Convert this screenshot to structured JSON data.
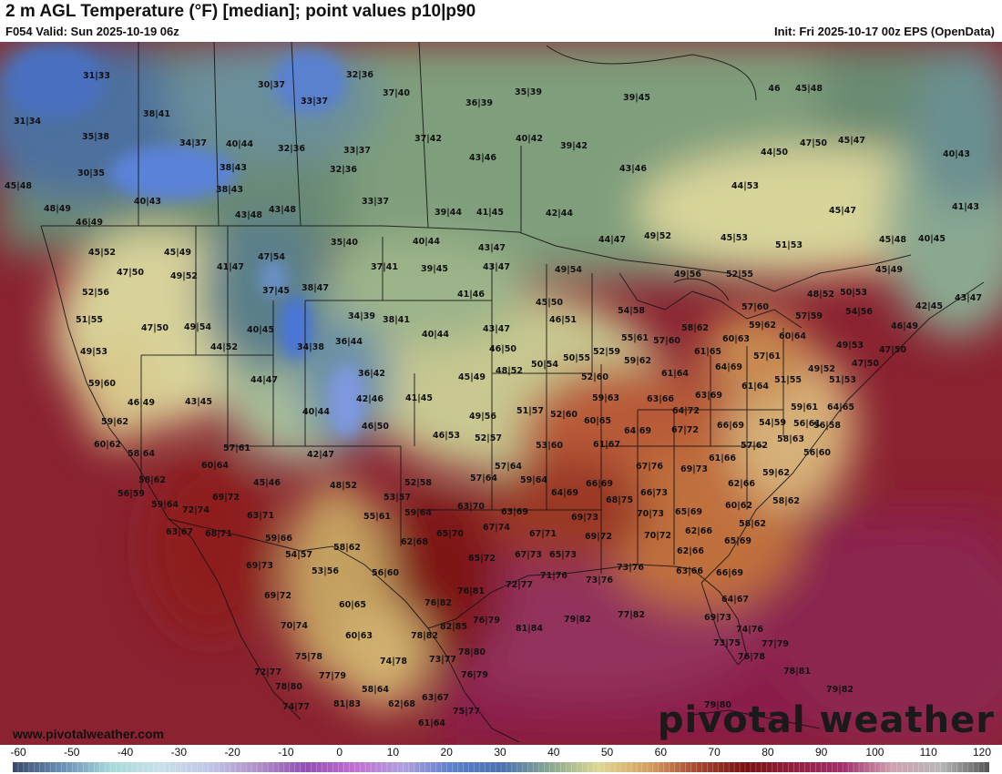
{
  "header": {
    "title": "2 m AGL Temperature (°F) [median]; point values p10|p90",
    "valid": "F054 Valid: Sun 2025-10-19 06z",
    "init": "Init: Fri 2025-10-17 00z EPS (OpenData)"
  },
  "footer": {
    "credit": "www.pivotalweather.com",
    "brand": "pivotal weather"
  },
  "legend": {
    "ticks": [
      "-60",
      "-50",
      "-40",
      "-30",
      "-20",
      "-10",
      "0",
      "10",
      "20",
      "30",
      "40",
      "50",
      "60",
      "70",
      "80",
      "90",
      "100",
      "110",
      "120"
    ],
    "min": -60,
    "max": 120,
    "stops": [
      "#3a4a6a",
      "#6a8fb5",
      "#a8d8d8",
      "#c8e0e8",
      "#c2c8e8",
      "#b090c8",
      "#9050b0",
      "#c070d0",
      "#b0a0e0",
      "#5a80d0",
      "#4a70b0",
      "#8aa890",
      "#dcd896",
      "#d8a060",
      "#a84830",
      "#7a1010",
      "#902040",
      "#a0306a",
      "#d0a0b0",
      "#b8b8b8",
      "#555555"
    ]
  },
  "points": [
    [
      "31|33",
      106,
      82
    ],
    [
      "31|34",
      30,
      132
    ],
    [
      "38|41",
      172,
      124
    ],
    [
      "35|38",
      105,
      149
    ],
    [
      "30|35",
      100,
      189
    ],
    [
      "45|48",
      20,
      203
    ],
    [
      "40|43",
      162,
      220
    ],
    [
      "48|49",
      63,
      228
    ],
    [
      "34|37",
      212,
      156
    ],
    [
      "40|44",
      263,
      157
    ],
    [
      "38|43",
      256,
      183
    ],
    [
      "38|43",
      252,
      207
    ],
    [
      "43|48",
      273,
      235
    ],
    [
      "30|37",
      298,
      92
    ],
    [
      "33|37",
      345,
      110
    ],
    [
      "32|36",
      395,
      81
    ],
    [
      "37|40",
      435,
      101
    ],
    [
      "36|39",
      526,
      112
    ],
    [
      "35|39",
      580,
      100
    ],
    [
      "39|45",
      699,
      106
    ],
    [
      "32|36",
      320,
      162
    ],
    [
      "33|37",
      392,
      164
    ],
    [
      "32|36",
      377,
      185
    ],
    [
      "37|42",
      470,
      151
    ],
    [
      "40|42",
      581,
      151
    ],
    [
      "39|42",
      630,
      159
    ],
    [
      "43|46",
      530,
      172
    ],
    [
      "33|37",
      412,
      220
    ],
    [
      "39|44",
      492,
      232
    ],
    [
      "41|45",
      538,
      232
    ],
    [
      "42|44",
      614,
      233
    ],
    [
      "43|46",
      695,
      184
    ],
    [
      "44|53",
      818,
      203
    ],
    [
      "44|50",
      850,
      166
    ],
    [
      "47|50",
      893,
      156
    ],
    [
      "45|47",
      935,
      153
    ],
    [
      "40|43",
      1050,
      168
    ],
    [
      "45|48",
      888,
      96
    ],
    [
      "46",
      850,
      96
    ],
    [
      "43|48",
      310,
      229
    ],
    [
      "46|49",
      98,
      243
    ],
    [
      "45|52",
      112,
      276
    ],
    [
      "45|49",
      195,
      276
    ],
    [
      "47|54",
      298,
      281
    ],
    [
      "41|47",
      253,
      292
    ],
    [
      "35|40",
      378,
      265
    ],
    [
      "40|44",
      468,
      264
    ],
    [
      "37|41",
      422,
      292
    ],
    [
      "39|45",
      477,
      294
    ],
    [
      "43|47",
      540,
      271
    ],
    [
      "43|47",
      545,
      292
    ],
    [
      "44|47",
      672,
      262
    ],
    [
      "49|52",
      722,
      258
    ],
    [
      "45|53",
      806,
      260
    ],
    [
      "51|53",
      866,
      268
    ],
    [
      "45|47",
      925,
      230
    ],
    [
      "41|43",
      1060,
      226
    ],
    [
      "45|48",
      980,
      262
    ],
    [
      "40|45",
      1023,
      261
    ],
    [
      "47|50",
      143,
      298
    ],
    [
      "49|52",
      202,
      302
    ],
    [
      "52|56",
      105,
      320
    ],
    [
      "37|45",
      303,
      318
    ],
    [
      "38|47",
      346,
      315
    ],
    [
      "41|46",
      517,
      322
    ],
    [
      "49|54",
      624,
      295
    ],
    [
      "49|56",
      755,
      300
    ],
    [
      "52|55",
      812,
      300
    ],
    [
      "45|49",
      976,
      295
    ],
    [
      "48|52",
      901,
      322
    ],
    [
      "50|53",
      937,
      320
    ],
    [
      "51|55",
      98,
      350
    ],
    [
      "47|50",
      170,
      359
    ],
    [
      "49|54",
      217,
      358
    ],
    [
      "40|45",
      286,
      361
    ],
    [
      "34|39",
      397,
      346
    ],
    [
      "38|41",
      435,
      350
    ],
    [
      "45|50",
      603,
      331
    ],
    [
      "46|51",
      618,
      350
    ],
    [
      "54|58",
      693,
      340
    ],
    [
      "57|60",
      829,
      336
    ],
    [
      "42|45",
      1020,
      335
    ],
    [
      "43|47",
      1063,
      326
    ],
    [
      "54|56",
      943,
      341
    ],
    [
      "46|49",
      993,
      357
    ],
    [
      "49|53",
      103,
      385
    ],
    [
      "44|52",
      246,
      380
    ],
    [
      "34|38",
      341,
      380
    ],
    [
      "36|44",
      383,
      374
    ],
    [
      "40|44",
      478,
      366
    ],
    [
      "43|47",
      545,
      360
    ],
    [
      "46|50",
      552,
      382
    ],
    [
      "55|61",
      697,
      370
    ],
    [
      "57|60",
      732,
      373
    ],
    [
      "58|62",
      763,
      359
    ],
    [
      "60|63",
      808,
      371
    ],
    [
      "59|62",
      837,
      356
    ],
    [
      "57|59",
      888,
      346
    ],
    [
      "60|64",
      870,
      368
    ],
    [
      "61|65",
      777,
      385
    ],
    [
      "57|61",
      842,
      390
    ],
    [
      "49|53",
      933,
      378
    ],
    [
      "47|50",
      980,
      383
    ],
    [
      "50|54",
      598,
      399
    ],
    [
      "50|55",
      633,
      392
    ],
    [
      "52|59",
      666,
      385
    ],
    [
      "59|62",
      700,
      395
    ],
    [
      "64|69",
      800,
      402
    ],
    [
      "51|55",
      865,
      416
    ],
    [
      "49|52",
      902,
      404
    ],
    [
      "47|50",
      950,
      398
    ],
    [
      "51|53",
      925,
      416
    ],
    [
      "59|60",
      112,
      420
    ],
    [
      "44|47",
      290,
      416
    ],
    [
      "36|42",
      408,
      409
    ],
    [
      "45|49",
      518,
      413
    ],
    [
      "48|52",
      559,
      406
    ],
    [
      "52|60",
      653,
      413
    ],
    [
      "61|64",
      741,
      409
    ],
    [
      "61|64",
      829,
      423
    ],
    [
      "46|49",
      155,
      441
    ],
    [
      "43|45",
      218,
      440
    ],
    [
      "42|46",
      406,
      437
    ],
    [
      "41|45",
      460,
      436
    ],
    [
      "40|44",
      347,
      451
    ],
    [
      "59|63",
      665,
      436
    ],
    [
      "63|66",
      725,
      437
    ],
    [
      "63|69",
      778,
      433
    ],
    [
      "59|61",
      883,
      446
    ],
    [
      "64|65",
      923,
      446
    ],
    [
      "59|62",
      126,
      462
    ],
    [
      "49|56",
      530,
      456
    ],
    [
      "51|57",
      582,
      450
    ],
    [
      "52|60",
      619,
      454
    ],
    [
      "60|65",
      656,
      461
    ],
    [
      "64|72",
      753,
      450
    ],
    [
      "56|61",
      886,
      464
    ],
    [
      "56|58",
      908,
      466
    ],
    [
      "60|62",
      118,
      487
    ],
    [
      "46|50",
      412,
      467
    ],
    [
      "46|53",
      490,
      477
    ],
    [
      "52|57",
      536,
      480
    ],
    [
      "64|69",
      700,
      472
    ],
    [
      "67|72",
      752,
      471
    ],
    [
      "66|69",
      802,
      466
    ],
    [
      "54|59",
      848,
      463
    ],
    [
      "58|64",
      155,
      497
    ],
    [
      "57|61",
      260,
      491
    ],
    [
      "42|47",
      352,
      498
    ],
    [
      "53|60",
      603,
      488
    ],
    [
      "61|67",
      666,
      487
    ],
    [
      "57|62",
      828,
      488
    ],
    [
      "58|63",
      868,
      481
    ],
    [
      "56|60",
      897,
      496
    ],
    [
      "60|64",
      236,
      510
    ],
    [
      "57|64",
      558,
      511
    ],
    [
      "67|76",
      713,
      511
    ],
    [
      "69|73",
      762,
      514
    ],
    [
      "61|66",
      793,
      502
    ],
    [
      "59|62",
      852,
      518
    ],
    [
      "58|62",
      167,
      526
    ],
    [
      "69|72",
      248,
      545
    ],
    [
      "45|46",
      293,
      529
    ],
    [
      "48|52",
      377,
      532
    ],
    [
      "52|58",
      459,
      529
    ],
    [
      "57|64",
      531,
      524
    ],
    [
      "59|64",
      586,
      526
    ],
    [
      "66|69",
      658,
      530
    ],
    [
      "62|66",
      814,
      530
    ],
    [
      "56|59",
      144,
      541
    ],
    [
      "59|64",
      181,
      553
    ],
    [
      "72|74",
      215,
      559
    ],
    [
      "53|57",
      436,
      545
    ],
    [
      "64|69",
      620,
      540
    ],
    [
      "68|75",
      680,
      548
    ],
    [
      "66|73",
      718,
      540
    ],
    [
      "58|62",
      863,
      549
    ],
    [
      "60|62",
      811,
      554
    ],
    [
      "63|67",
      197,
      583
    ],
    [
      "68|71",
      240,
      585
    ],
    [
      "63|71",
      286,
      565
    ],
    [
      "55|61",
      414,
      566
    ],
    [
      "59|64",
      459,
      562
    ],
    [
      "63|70",
      517,
      555
    ],
    [
      "63|69",
      565,
      561
    ],
    [
      "69|73",
      642,
      567
    ],
    [
      "70|73",
      714,
      563
    ],
    [
      "65|69",
      756,
      561
    ],
    [
      "58|62",
      826,
      574
    ],
    [
      "59|66",
      306,
      590
    ],
    [
      "58|62",
      381,
      600
    ],
    [
      "62|68",
      455,
      594
    ],
    [
      "65|70",
      494,
      585
    ],
    [
      "67|74",
      545,
      578
    ],
    [
      "67|71",
      596,
      585
    ],
    [
      "69|72",
      657,
      588
    ],
    [
      "70|72",
      722,
      587
    ],
    [
      "62|66",
      767,
      582
    ],
    [
      "65|69",
      810,
      593
    ],
    [
      "54|57",
      328,
      608
    ],
    [
      "65|72",
      529,
      612
    ],
    [
      "67|73",
      580,
      608
    ],
    [
      "65|73",
      618,
      608
    ],
    [
      "62|66",
      758,
      604
    ],
    [
      "69|73",
      285,
      620
    ],
    [
      "53|56",
      357,
      626
    ],
    [
      "56|60",
      423,
      628
    ],
    [
      "71|76",
      608,
      631
    ],
    [
      "73|76",
      658,
      636
    ],
    [
      "73|76",
      692,
      622
    ],
    [
      "63|66",
      757,
      626
    ],
    [
      "66|69",
      801,
      628
    ],
    [
      "72|77",
      570,
      641
    ],
    [
      "69|72",
      305,
      653
    ],
    [
      "76|81",
      517,
      648
    ],
    [
      "60|65",
      387,
      663
    ],
    [
      "76|82",
      481,
      661
    ],
    [
      "64|67",
      807,
      657
    ],
    [
      "76|79",
      534,
      680
    ],
    [
      "81|84",
      581,
      689
    ],
    [
      "79|82",
      634,
      679
    ],
    [
      "77|82",
      693,
      674
    ],
    [
      "69|73",
      788,
      677
    ],
    [
      "70|74",
      323,
      686
    ],
    [
      "82|85",
      498,
      687
    ],
    [
      "60|63",
      394,
      697
    ],
    [
      "78|82",
      466,
      697
    ],
    [
      "74|76",
      823,
      690
    ],
    [
      "73|75",
      798,
      705
    ],
    [
      "77|79",
      851,
      706
    ],
    [
      "75|78",
      339,
      720
    ],
    [
      "78|80",
      518,
      715
    ],
    [
      "74|78",
      432,
      725
    ],
    [
      "73|77",
      486,
      723
    ],
    [
      "76|78",
      825,
      720
    ],
    [
      "72|77",
      294,
      737
    ],
    [
      "77|79",
      365,
      741
    ],
    [
      "76|79",
      521,
      740
    ],
    [
      "78|81",
      875,
      736
    ],
    [
      "78|80",
      317,
      753
    ],
    [
      "58|64",
      412,
      756
    ],
    [
      "63|67",
      478,
      765
    ],
    [
      "79|82",
      922,
      756
    ],
    [
      "74|77",
      325,
      775
    ],
    [
      "81|83",
      381,
      772
    ],
    [
      "62|68",
      441,
      772
    ],
    [
      "75|77",
      512,
      780
    ],
    [
      "79|80",
      788,
      773
    ],
    [
      "61|64",
      474,
      793
    ]
  ]
}
